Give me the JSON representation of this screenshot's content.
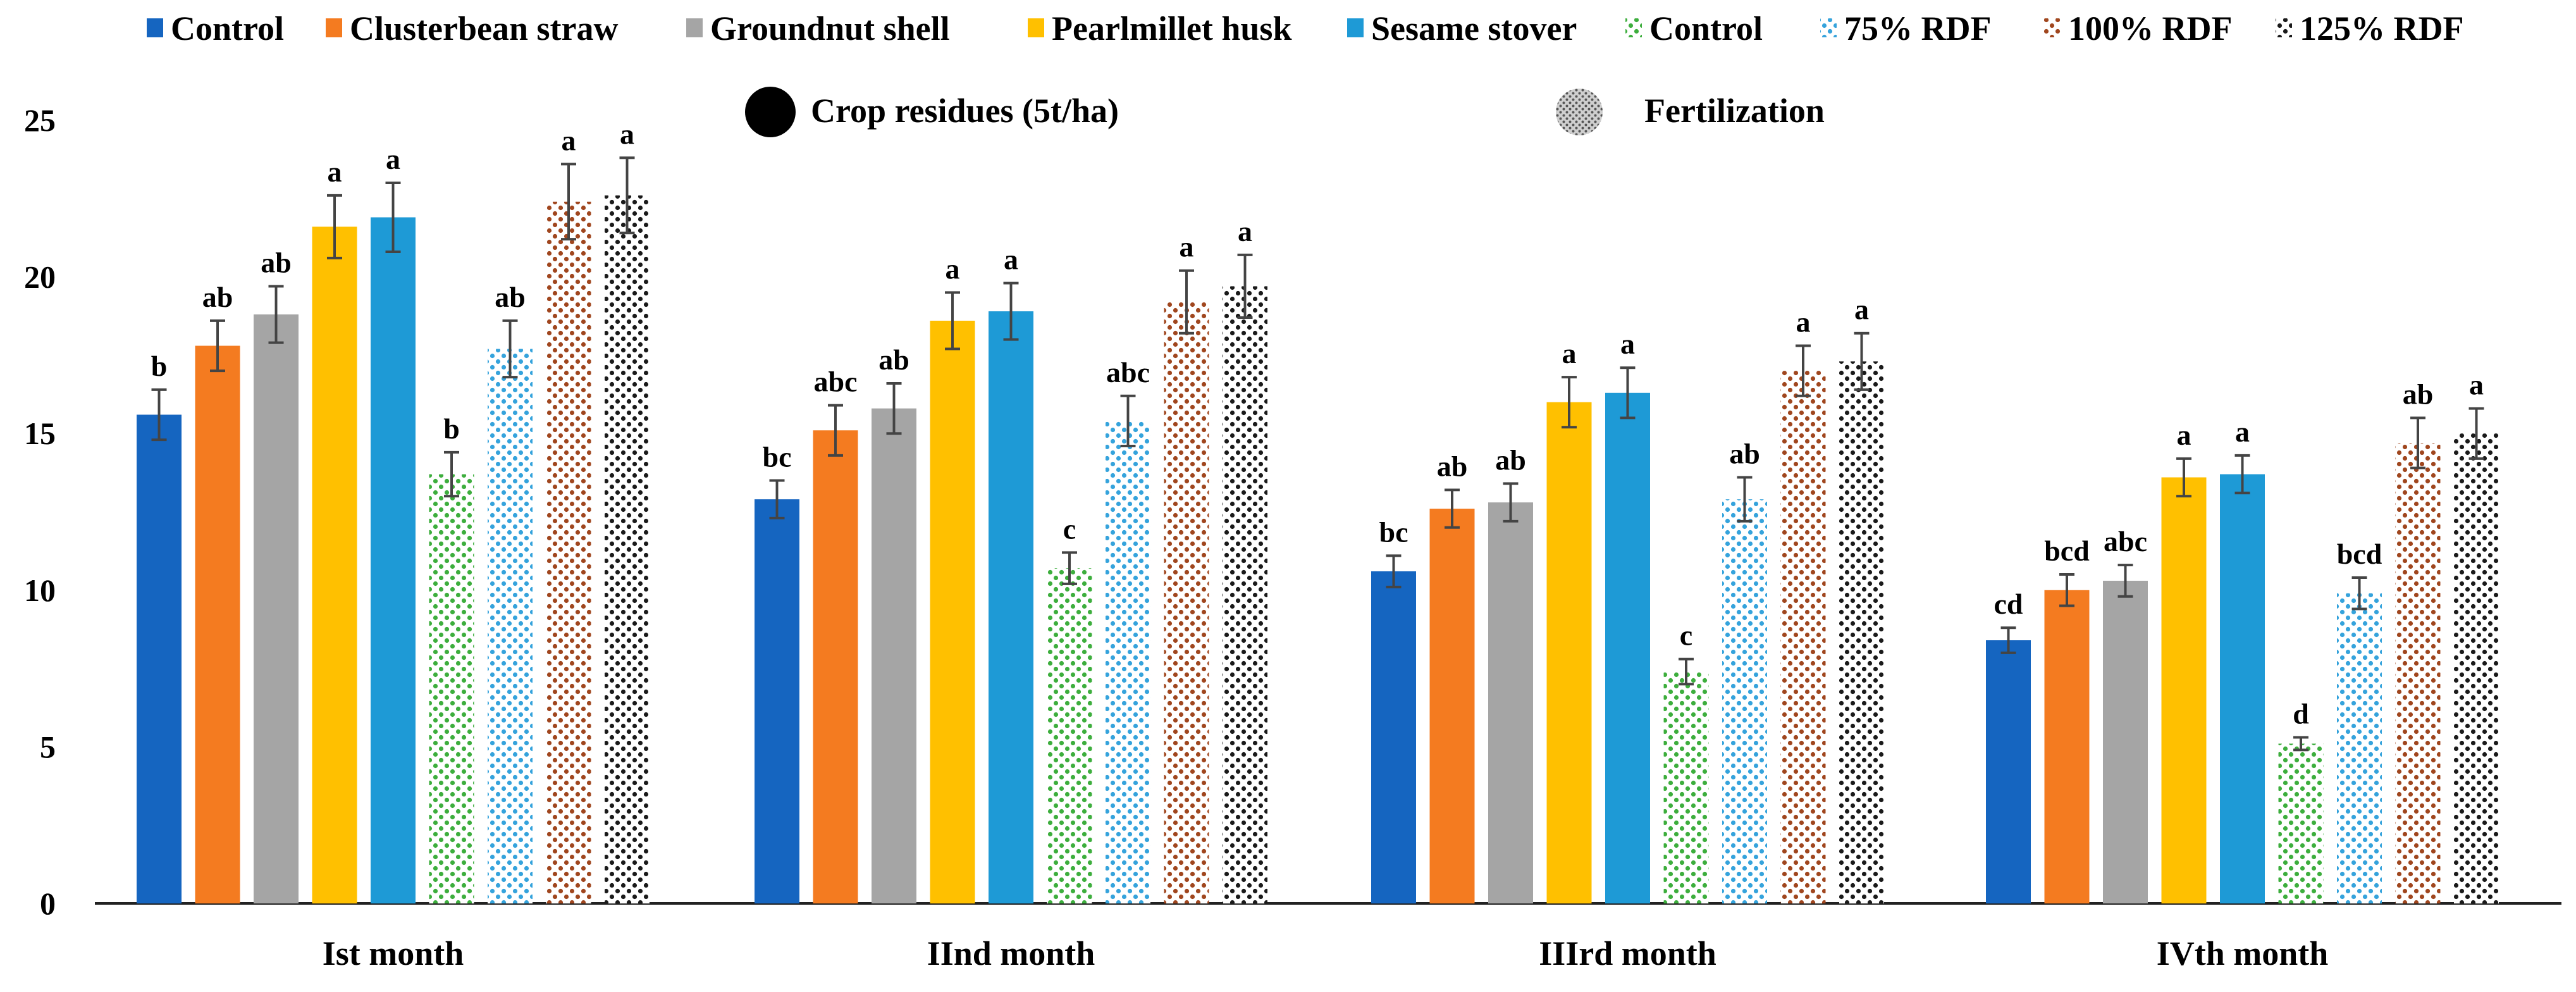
{
  "chart_data": {
    "type": "bar",
    "title": "",
    "xlabel": "",
    "ylabel": "",
    "ylim": [
      0,
      25
    ],
    "yticks": [
      0,
      5,
      10,
      15,
      20,
      25
    ],
    "grid": false,
    "legend_position": "top",
    "categories": [
      "Ist month",
      "IInd month",
      "IIIrd month",
      "IVth month"
    ],
    "group_labels": [
      "Crop residues (5t/ha)",
      "Fertilization"
    ],
    "series": [
      {
        "name": "Control",
        "group": "Crop residues (5t/ha)",
        "pattern": "solid",
        "color": "#1565C0",
        "values": [
          15.6,
          12.9,
          10.6,
          8.4
        ],
        "errors": [
          0.8,
          0.6,
          0.5,
          0.4
        ],
        "labels": [
          "b",
          "bc",
          "bc",
          "cd"
        ]
      },
      {
        "name": "Clusterbean straw",
        "group": "Crop residues (5t/ha)",
        "pattern": "solid",
        "color": "#F47B20",
        "values": [
          17.8,
          15.1,
          12.6,
          10.0
        ],
        "errors": [
          0.8,
          0.8,
          0.6,
          0.5
        ],
        "labels": [
          "ab",
          "abc",
          "ab",
          "bcd"
        ]
      },
      {
        "name": "Groundnut shell",
        "group": "Crop residues (5t/ha)",
        "pattern": "solid",
        "color": "#A5A5A5",
        "values": [
          18.8,
          15.8,
          12.8,
          10.3
        ],
        "errors": [
          0.9,
          0.8,
          0.6,
          0.5
        ],
        "labels": [
          "ab",
          "ab",
          "ab",
          "abc"
        ]
      },
      {
        "name": "Pearlmillet husk",
        "group": "Crop residues (5t/ha)",
        "pattern": "solid",
        "color": "#FFC000",
        "values": [
          21.6,
          18.6,
          16.0,
          13.6
        ],
        "errors": [
          1.0,
          0.9,
          0.8,
          0.6
        ],
        "labels": [
          "a",
          "a",
          "a",
          "a"
        ]
      },
      {
        "name": "Sesame stover",
        "group": "Crop residues (5t/ha)",
        "pattern": "solid",
        "color": "#1E9AD6",
        "values": [
          21.9,
          18.9,
          16.3,
          13.7
        ],
        "errors": [
          1.1,
          0.9,
          0.8,
          0.6
        ],
        "labels": [
          "a",
          "a",
          "a",
          "a"
        ]
      },
      {
        "name": "Control",
        "group": "Fertilization",
        "pattern": "dots",
        "color": "#3DAE3D",
        "values": [
          13.7,
          10.7,
          7.4,
          5.1
        ],
        "errors": [
          0.7,
          0.5,
          0.4,
          0.2
        ],
        "labels": [
          "b",
          "c",
          "c",
          "d"
        ]
      },
      {
        "name": "75% RDF",
        "group": "Fertilization",
        "pattern": "dots",
        "color": "#35A3DC",
        "values": [
          17.7,
          15.4,
          12.9,
          9.9
        ],
        "errors": [
          0.9,
          0.8,
          0.7,
          0.5
        ],
        "labels": [
          "ab",
          "abc",
          "ab",
          "bcd"
        ]
      },
      {
        "name": "100% RDF",
        "group": "Fertilization",
        "pattern": "dots",
        "color": "#A0461E",
        "values": [
          22.4,
          19.2,
          17.0,
          14.7
        ],
        "errors": [
          1.2,
          1.0,
          0.8,
          0.8
        ],
        "labels": [
          "a",
          "a",
          "a",
          "ab"
        ]
      },
      {
        "name": "125% RDF",
        "group": "Fertilization",
        "pattern": "dots",
        "color": "#1A1A1A",
        "values": [
          22.6,
          19.7,
          17.3,
          15.0
        ],
        "errors": [
          1.2,
          1.0,
          0.9,
          0.8
        ],
        "labels": [
          "a",
          "a",
          "a",
          "a"
        ]
      }
    ]
  }
}
